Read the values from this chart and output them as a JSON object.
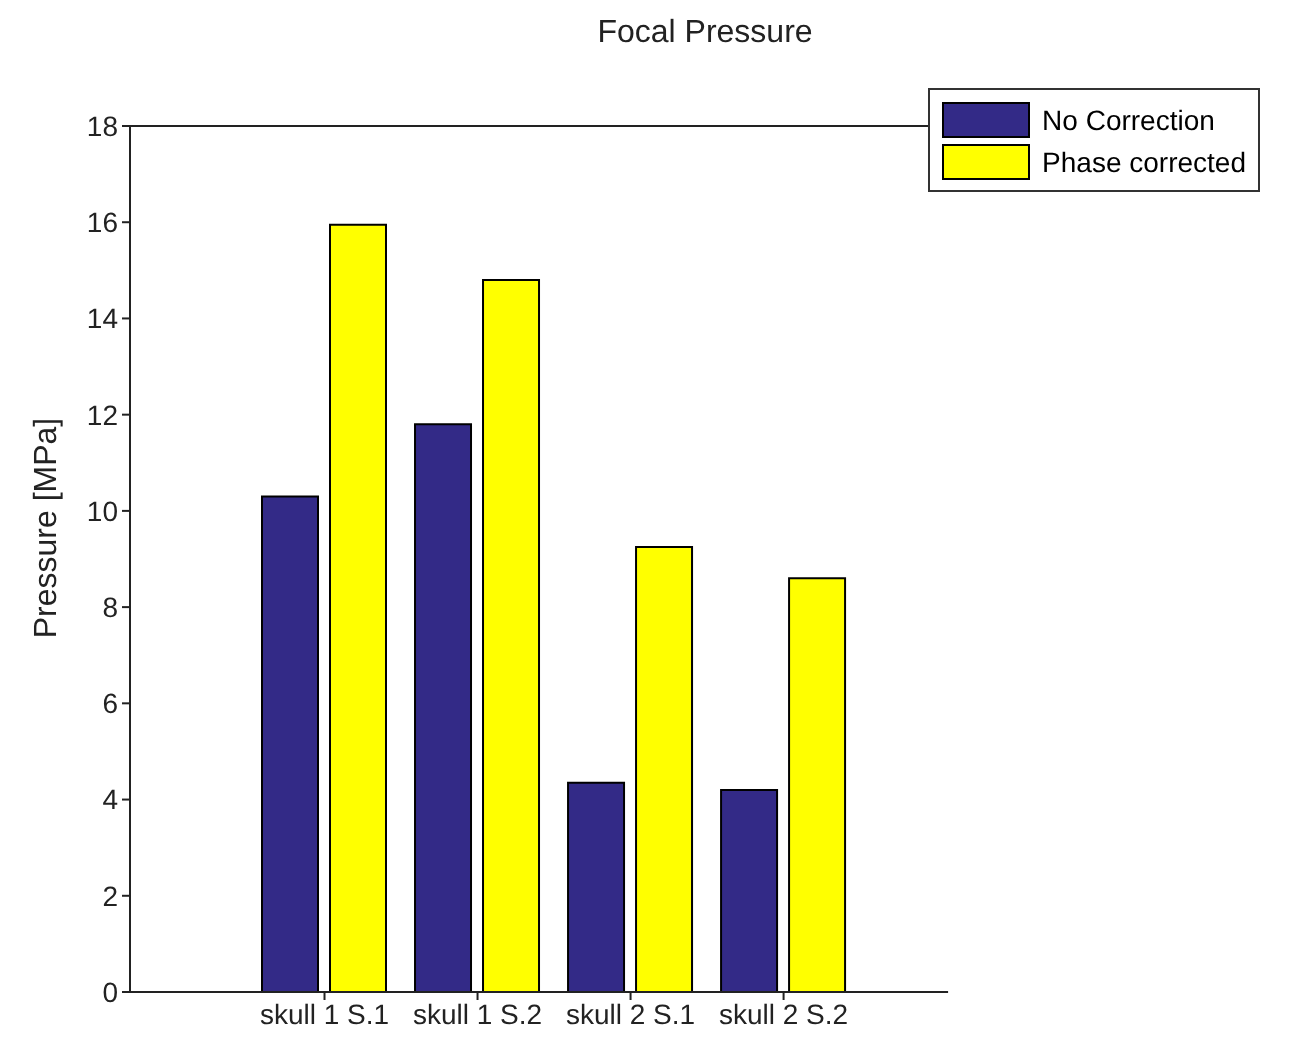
{
  "chart_data": {
    "type": "bar",
    "title": "Focal Pressure",
    "ylabel": "Pressure [MPa]",
    "categories": [
      "skull 1 S.1",
      "skull 1 S.2",
      "skull 2 S.1",
      "skull 2 S.2"
    ],
    "series": [
      {
        "name": "No Correction",
        "color": "#332a87",
        "values": [
          10.3,
          11.8,
          4.35,
          4.2
        ]
      },
      {
        "name": "Phase corrected",
        "color": "#ffff00",
        "values": [
          15.95,
          14.8,
          9.25,
          8.6
        ]
      }
    ],
    "ylim": [
      0,
      18
    ],
    "yticks": [
      0,
      2,
      4,
      6,
      8,
      10,
      12,
      14,
      16,
      18
    ],
    "legend": "top right",
    "grid": false
  }
}
